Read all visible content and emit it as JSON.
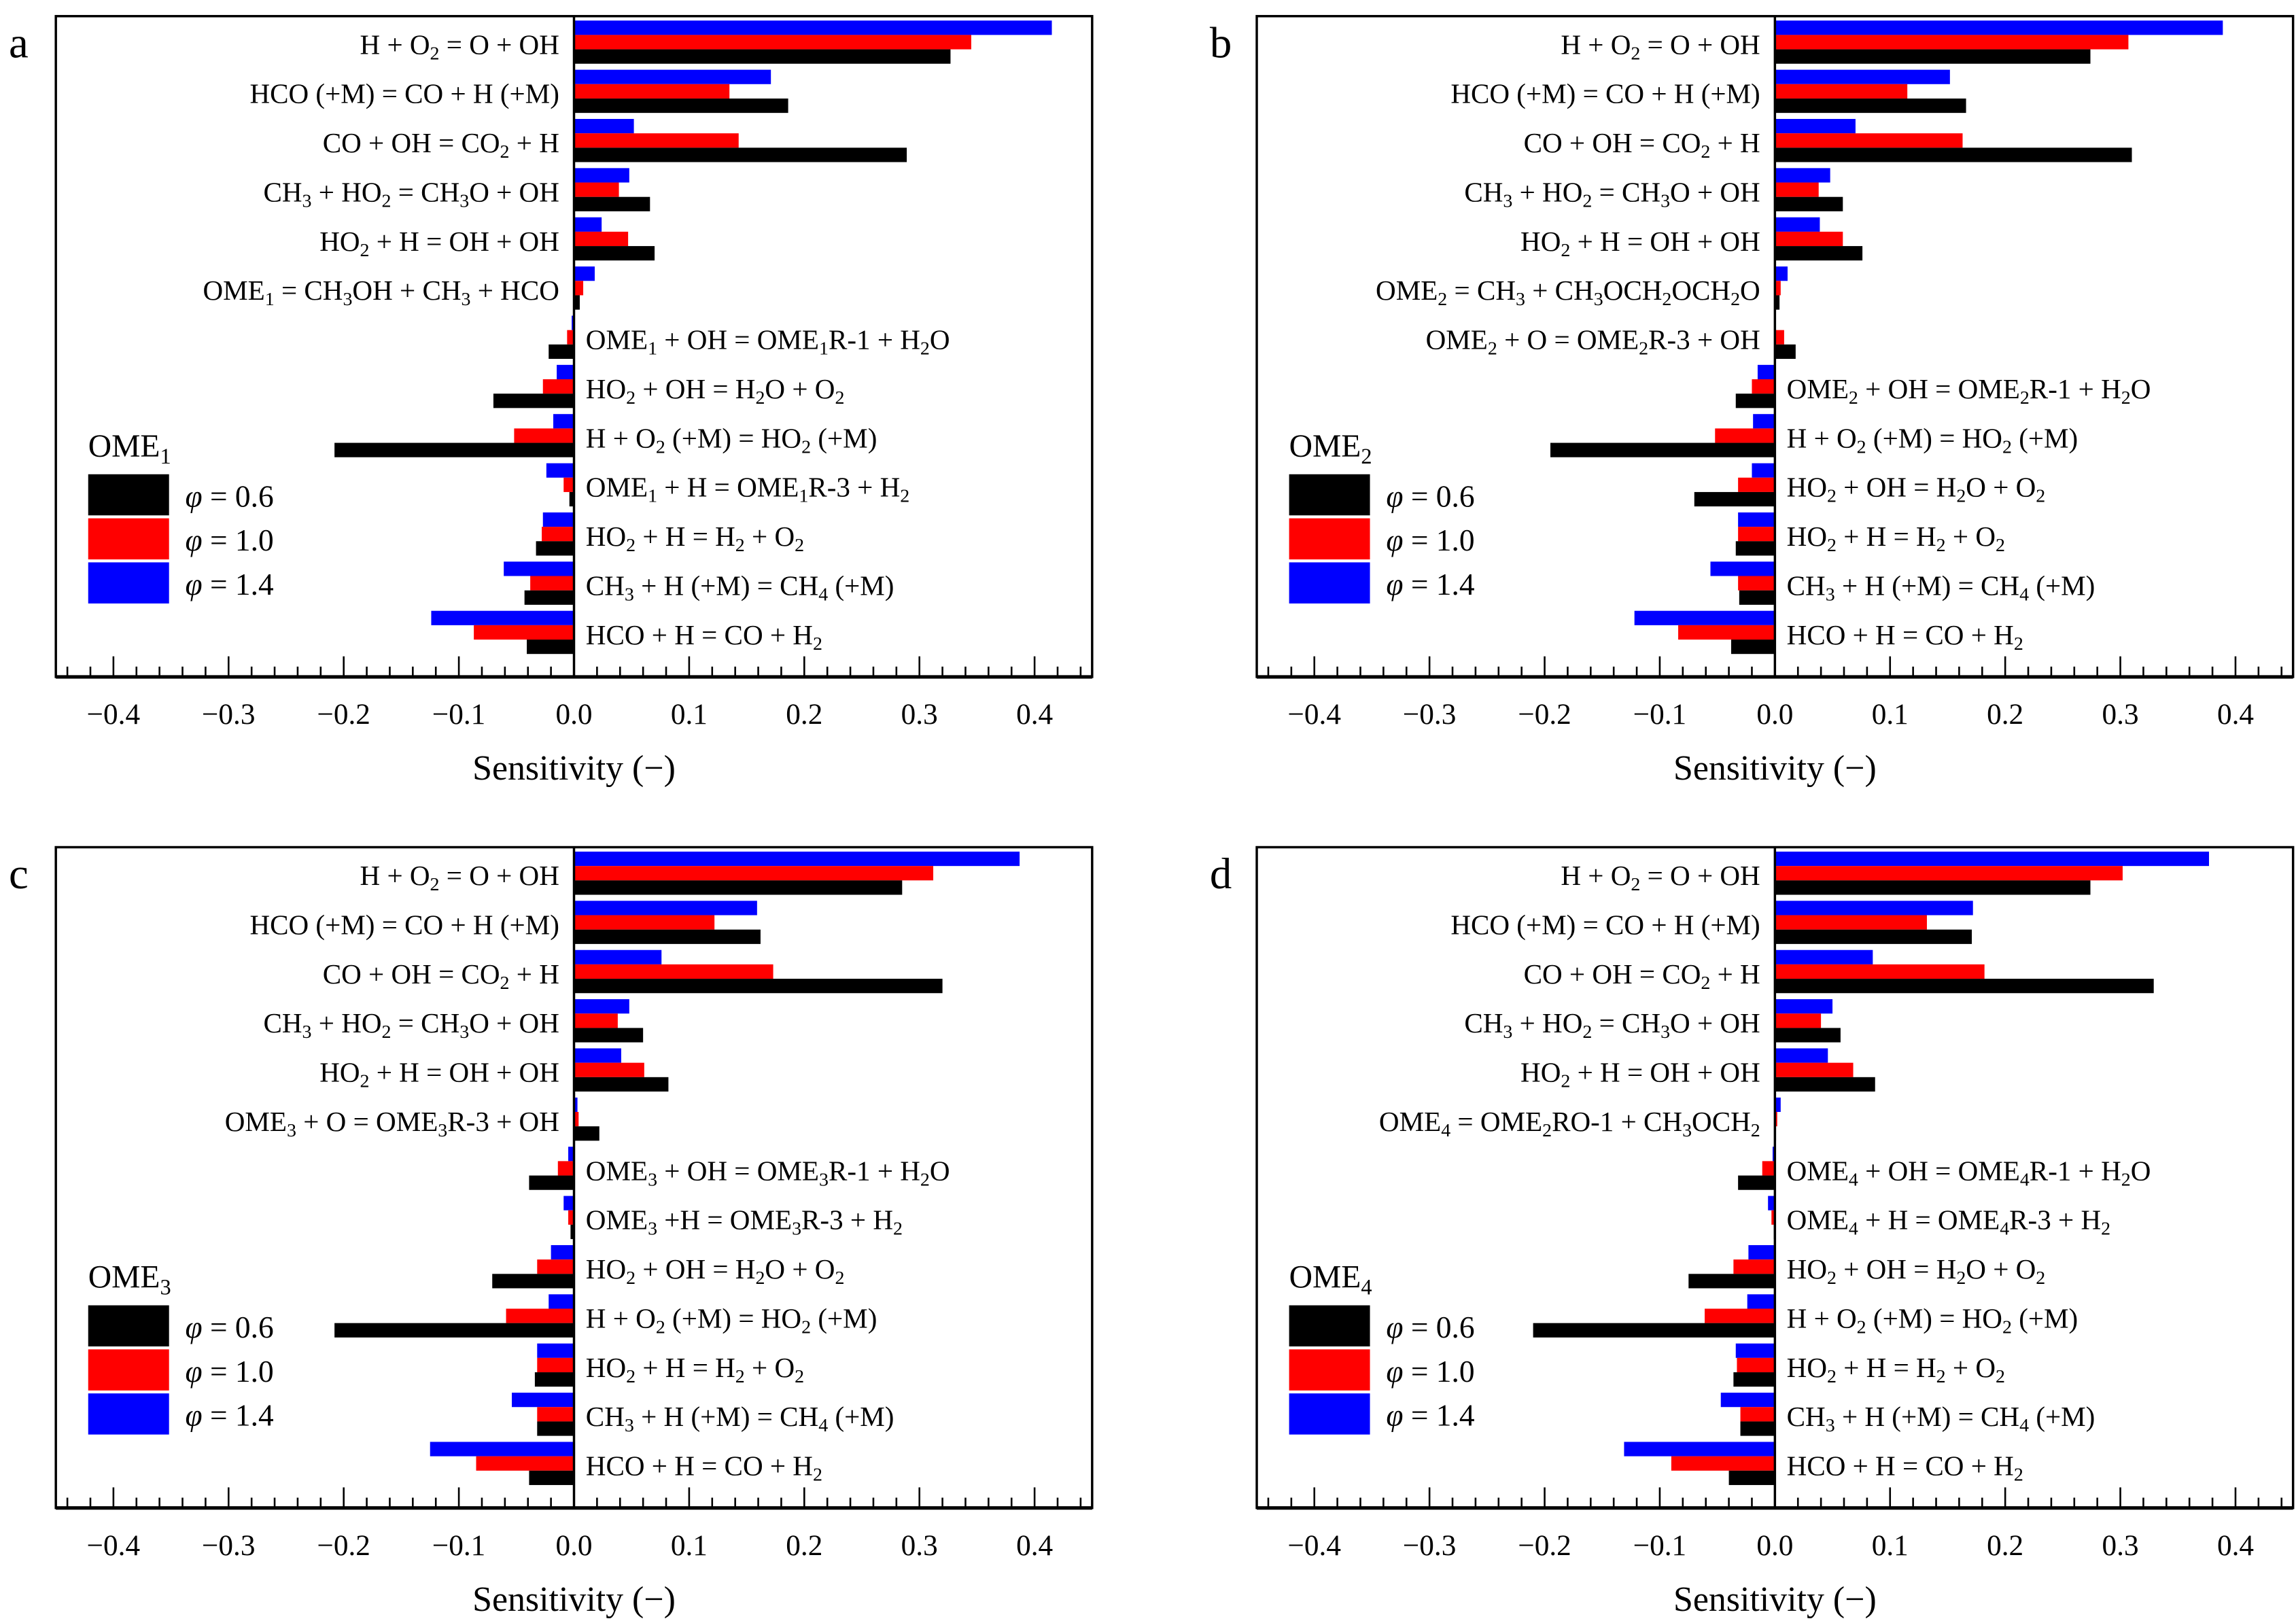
{
  "chart_data": [
    {
      "type": "bar",
      "orientation": "horizontal",
      "panel": "a",
      "fuel": "OME1",
      "xlabel": "Sensitivity (−)",
      "xlim": [
        -0.45,
        0.45
      ],
      "xticks": [
        "-0.4",
        "-0.3",
        "-0.2",
        "-0.1",
        "0.0",
        "0.1",
        "0.2",
        "0.3",
        "0.4"
      ],
      "legend": {
        "title": "OME₁",
        "placement": "lower-left"
      },
      "categories": [
        "H + O₂ = O + OH",
        "HCO (+M) = CO + H (+M)",
        "CO + OH = CO₂ + H",
        "CH₃ + HO₂ = CH₃O + OH",
        "HO₂ + H = OH + OH",
        "OME₁ = CH₃OH + CH₃ + HCO",
        "OME₁ + OH = OME₁R-1 + H₂O",
        "HO₂ + OH = H₂O + O₂",
        "H + O₂ (+M) = HO₂ (+M)",
        "OME₁ + H = OME₁R-3 + H₂",
        "HO₂ + H = H₂ + O₂",
        "CH₃ + H (+M) = CH₄ (+M)",
        "HCO + H = CO + H₂"
      ],
      "series": [
        {
          "name": "φ = 0.6",
          "color": "#000000",
          "values": [
            0.327,
            0.186,
            0.289,
            0.066,
            0.07,
            0.005,
            -0.022,
            -0.07,
            -0.208,
            -0.004,
            -0.033,
            -0.043,
            -0.041
          ]
        },
        {
          "name": "φ = 1.0",
          "color": "#ff0000",
          "values": [
            0.345,
            0.135,
            0.143,
            0.039,
            0.047,
            0.008,
            -0.006,
            -0.027,
            -0.052,
            -0.009,
            -0.028,
            -0.038,
            -0.087
          ]
        },
        {
          "name": "φ = 1.4",
          "color": "#0000ff",
          "values": [
            0.415,
            0.171,
            0.052,
            0.048,
            0.024,
            0.018,
            -0.002,
            -0.015,
            -0.018,
            -0.024,
            -0.027,
            -0.061,
            -0.124
          ]
        }
      ]
    },
    {
      "type": "bar",
      "orientation": "horizontal",
      "panel": "b",
      "fuel": "OME2",
      "xlabel": "Sensitivity (−)",
      "xlim": [
        -0.45,
        0.45
      ],
      "xticks": [
        "-0.4",
        "-0.3",
        "-0.2",
        "-0.1",
        "0.0",
        "0.1",
        "0.2",
        "0.3",
        "0.4"
      ],
      "legend": {
        "title": "OME₂",
        "placement": "lower-left"
      },
      "categories": [
        "H + O₂ = O + OH",
        "HCO (+M) = CO + H (+M)",
        "CO + OH = CO₂ + H",
        "CH₃ + HO₂ = CH₃O + OH",
        "HO₂ + H = OH + OH",
        "OME₂ = CH₃ + CH₃OCH₂OCH₂O",
        "OME₂ + O = OME₂R-3 + OH",
        "OME₂ + OH = OME₂R-1 + H₂O",
        "H + O₂ (+M) = HO₂ (+M)",
        "HO₂ + OH = H₂O + O₂",
        "HO₂ + H = H₂ + O₂",
        "CH₃ + H (+M) = CH₄ (+M)",
        "HCO + H = CO + H₂"
      ],
      "series": [
        {
          "name": "φ = 0.6",
          "color": "#000000",
          "values": [
            0.274,
            0.166,
            0.31,
            0.059,
            0.076,
            0.004,
            0.018,
            -0.034,
            -0.195,
            -0.07,
            -0.034,
            -0.031,
            -0.038
          ]
        },
        {
          "name": "φ = 1.0",
          "color": "#ff0000",
          "values": [
            0.307,
            0.115,
            0.163,
            0.038,
            0.059,
            0.005,
            0.008,
            -0.02,
            -0.052,
            -0.032,
            -0.032,
            -0.032,
            -0.084
          ]
        },
        {
          "name": "φ = 1.4",
          "color": "#0000ff",
          "values": [
            0.389,
            0.152,
            0.07,
            0.048,
            0.039,
            0.011,
            0.0,
            -0.015,
            -0.019,
            -0.02,
            -0.032,
            -0.056,
            -0.122
          ]
        }
      ]
    },
    {
      "type": "bar",
      "orientation": "horizontal",
      "panel": "c",
      "fuel": "OME3",
      "xlabel": "Sensitivity (−)",
      "xlim": [
        -0.45,
        0.45
      ],
      "xticks": [
        "-0.4",
        "-0.3",
        "-0.2",
        "-0.1",
        "0.0",
        "0.1",
        "0.2",
        "0.3",
        "0.4"
      ],
      "legend": {
        "title": "OME₃",
        "placement": "lower-left"
      },
      "categories": [
        "H + O₂ = O + OH",
        "HCO (+M) = CO + H (+M)",
        "CO + OH = CO₂ + H",
        "CH₃ + HO₂ = CH₃O + OH",
        "HO₂ + H = OH + OH",
        "OME₃ + O = OME₃R-3 + OH",
        "OME₃ + OH = OME₃R-1 + H₂O",
        "OME₃ +H = OME₃R-3 + H₂",
        "HO₂ + OH = H₂O + O₂",
        "H + O₂ (+M) = HO₂ (+M)",
        "HO₂ + H = H₂ + O₂",
        "CH₃ + H (+M) = CH₄ (+M)",
        "HCO + H = CO + H₂"
      ],
      "series": [
        {
          "name": "φ = 0.6",
          "color": "#000000",
          "values": [
            0.285,
            0.162,
            0.32,
            0.06,
            0.082,
            0.022,
            -0.039,
            -0.003,
            -0.071,
            -0.208,
            -0.034,
            -0.032,
            -0.039
          ]
        },
        {
          "name": "φ = 1.0",
          "color": "#ff0000",
          "values": [
            0.312,
            0.122,
            0.173,
            0.038,
            0.061,
            0.004,
            -0.014,
            -0.005,
            -0.032,
            -0.059,
            -0.032,
            -0.032,
            -0.085
          ]
        },
        {
          "name": "φ = 1.4",
          "color": "#0000ff",
          "values": [
            0.387,
            0.159,
            0.076,
            0.048,
            0.041,
            0.003,
            -0.005,
            -0.009,
            -0.02,
            -0.022,
            -0.032,
            -0.054,
            -0.125
          ]
        }
      ]
    },
    {
      "type": "bar",
      "orientation": "horizontal",
      "panel": "d",
      "fuel": "OME4",
      "xlabel": "Sensitivity (−)",
      "xlim": [
        -0.45,
        0.45
      ],
      "xticks": [
        "-0.4",
        "-0.3",
        "-0.2",
        "-0.1",
        "0.0",
        "0.1",
        "0.2",
        "0.3",
        "0.4"
      ],
      "legend": {
        "title": "OME₄",
        "placement": "lower-left"
      },
      "categories": [
        "H + O₂ = O + OH",
        "HCO (+M) = CO + H (+M)",
        "CO + OH = CO₂ + H",
        "CH₃ + HO₂ = CH₃O + OH",
        "HO₂ + H = OH + OH",
        "OME₄ = OME₂RO-1 + CH₃OCH₂",
        "OME₄ + OH = OME₄R-1 + H₂O",
        "OME₄ + H = OME₄R-3 + H₂",
        "HO₂ + OH = H₂O + O₂",
        "H + O₂ (+M) = HO₂ (+M)",
        "HO₂ + H = H₂ + O₂",
        "CH₃ + H (+M) = CH₄ (+M)",
        "HCO + H = CO + H₂"
      ],
      "series": [
        {
          "name": "φ = 0.6",
          "color": "#000000",
          "values": [
            0.274,
            0.171,
            0.329,
            0.057,
            0.087,
            0.001,
            -0.032,
            -0.001,
            -0.075,
            -0.21,
            -0.036,
            -0.03,
            -0.04
          ]
        },
        {
          "name": "φ = 1.0",
          "color": "#ff0000",
          "values": [
            0.302,
            0.132,
            0.182,
            0.04,
            0.068,
            0.002,
            -0.011,
            -0.003,
            -0.036,
            -0.061,
            -0.033,
            -0.03,
            -0.09
          ]
        },
        {
          "name": "φ = 1.4",
          "color": "#0000ff",
          "values": [
            0.377,
            0.172,
            0.085,
            0.05,
            0.046,
            0.005,
            -0.002,
            -0.006,
            -0.023,
            -0.024,
            -0.034,
            -0.047,
            -0.131
          ]
        }
      ]
    }
  ]
}
